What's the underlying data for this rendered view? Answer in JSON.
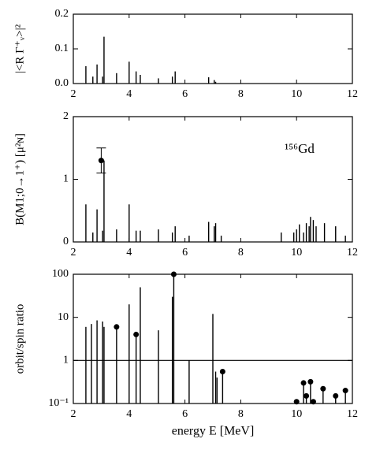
{
  "chart_data": [
    {
      "type": "stem",
      "ylabel": "|<R Γ⁺ᵥ>|²",
      "x": [
        2.45,
        2.7,
        2.85,
        3.05,
        3.1,
        3.55,
        4.0,
        4.25,
        4.4,
        5.05,
        5.55,
        5.65,
        6.85,
        7.05,
        7.1
      ],
      "values": [
        0.05,
        0.02,
        0.055,
        0.02,
        0.135,
        0.03,
        0.063,
        0.035,
        0.025,
        0.015,
        0.02,
        0.035,
        0.018,
        0.01,
        0.005
      ],
      "xlim": [
        2,
        12
      ],
      "xticks": [
        2,
        4,
        6,
        8,
        10,
        12
      ],
      "ylim": [
        0,
        0.2
      ],
      "yticks": [
        {
          "value": 0,
          "label": "0.0"
        },
        0.1,
        0.2
      ],
      "color": "#000000"
    },
    {
      "type": "stem",
      "ylabel": "B(M1;0→1⁺)  [μ²ɴ]",
      "annotation": "¹⁵⁶Gd",
      "x": [
        2.45,
        2.7,
        2.85,
        3.05,
        3.1,
        3.55,
        4.0,
        4.25,
        4.4,
        5.05,
        5.55,
        5.65,
        6.15,
        6.85,
        7.05,
        7.1,
        7.3,
        9.45,
        9.9,
        10.0,
        10.1,
        10.25,
        10.35,
        10.45,
        10.5,
        10.6,
        10.7,
        11.0,
        11.4,
        11.75
      ],
      "values": [
        0.6,
        0.15,
        0.52,
        0.18,
        1.3,
        0.2,
        0.6,
        0.18,
        0.18,
        0.2,
        0.15,
        0.25,
        0.1,
        0.32,
        0.25,
        0.3,
        0.1,
        0.15,
        0.15,
        0.2,
        0.28,
        0.15,
        0.3,
        0.25,
        0.4,
        0.35,
        0.25,
        0.3,
        0.25,
        0.1
      ],
      "experiment": {
        "x": 3.0,
        "value": 1.3,
        "error": 0.2
      },
      "xlim": [
        2,
        12
      ],
      "xticks": [
        2,
        4,
        6,
        8,
        10,
        12
      ],
      "ylim": [
        0,
        2
      ],
      "yticks": [
        0,
        1,
        2
      ],
      "color": "#000000"
    },
    {
      "type": "stem",
      "ylabel": "orbit/spin ratio",
      "xlabel": "energy E [MeV]",
      "log_y": true,
      "hline": 1,
      "x": [
        2.45,
        2.65,
        2.85,
        3.05,
        3.1,
        3.55,
        4.0,
        4.25,
        4.4,
        5.05,
        5.55,
        5.6,
        6.15,
        7.0,
        7.1,
        7.15,
        7.35,
        10.0,
        10.25,
        10.35,
        10.5,
        10.6,
        10.95,
        11.4,
        11.75
      ],
      "values": [
        6,
        7,
        8.5,
        8,
        6,
        6,
        20,
        4,
        50,
        5,
        30,
        100,
        1,
        12,
        0.55,
        0.4,
        0.55,
        0.11,
        0.3,
        0.15,
        0.32,
        0.11,
        0.22,
        0.15,
        0.2
      ],
      "markers": [
        false,
        false,
        false,
        false,
        false,
        true,
        false,
        true,
        false,
        false,
        false,
        true,
        false,
        false,
        false,
        false,
        true,
        true,
        true,
        true,
        true,
        true,
        true,
        true,
        true
      ],
      "xlim": [
        2,
        12
      ],
      "xticks": [
        2,
        4,
        6,
        8,
        10,
        12
      ],
      "ylim": [
        0.1,
        100
      ],
      "yticks": [
        {
          "value": 0.1,
          "label": "10⁻¹"
        },
        1,
        10,
        100
      ],
      "color": "#000000"
    }
  ]
}
